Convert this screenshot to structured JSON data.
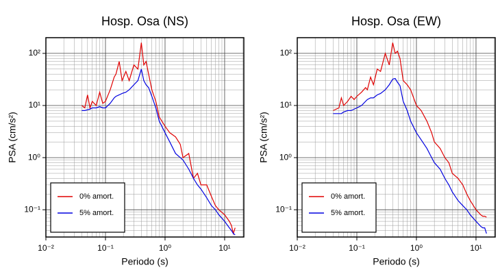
{
  "chart_data": [
    {
      "type": "line",
      "title": "Hosp. Osa (NS)",
      "x_label": "Periodo (s)",
      "y_label": "PSA (cm/s²)",
      "log_x": true,
      "log_y": true,
      "grid": true,
      "legend": "lower left",
      "xlim": [
        0.01,
        21
      ],
      "ylim": [
        0.03,
        200
      ],
      "xticks": [
        {
          "value": 0.01,
          "label": "10⁻²"
        },
        {
          "value": 0.1,
          "label": "10⁻¹"
        },
        {
          "value": 1,
          "label": "10⁰"
        },
        {
          "value": 10,
          "label": "10¹"
        }
      ],
      "yticks": [
        {
          "value": 0.1,
          "label": "10⁻¹"
        },
        {
          "value": 1,
          "label": "10⁰"
        },
        {
          "value": 10,
          "label": "10¹"
        },
        {
          "value": 100,
          "label": "10²"
        }
      ],
      "x": [
        0.04,
        0.045,
        0.05,
        0.055,
        0.06,
        0.07,
        0.08,
        0.09,
        0.1,
        0.12,
        0.14,
        0.15,
        0.17,
        0.19,
        0.22,
        0.25,
        0.3,
        0.35,
        0.4,
        0.44,
        0.48,
        0.53,
        0.6,
        0.7,
        0.8,
        1.0,
        1.2,
        1.5,
        1.8,
        2.0,
        2.5,
        3.0,
        3.5,
        4.0,
        5.0,
        6.0,
        7.0,
        8.0,
        10,
        12,
        13,
        14,
        15
      ],
      "series": [
        {
          "name": "0% amort.",
          "color": "#e00000",
          "values": [
            10,
            9,
            16,
            9,
            12,
            10,
            18,
            11,
            12,
            20,
            35,
            40,
            70,
            30,
            45,
            30,
            60,
            50,
            160,
            60,
            70,
            40,
            20,
            12,
            6,
            4,
            3,
            2.5,
            1.8,
            1,
            1.2,
            0.4,
            0.5,
            0.3,
            0.3,
            0.18,
            0.12,
            0.1,
            0.08,
            0.06,
            0.05,
            0.035,
            0.045
          ]
        },
        {
          "name": "5% amort.",
          "color": "#0000e0",
          "values": [
            8,
            8,
            8.3,
            8.5,
            9,
            9,
            9.5,
            9,
            9,
            11,
            14,
            15,
            16,
            17,
            18,
            20,
            25,
            30,
            50,
            30,
            25,
            22,
            15,
            9,
            5,
            3,
            2,
            1.2,
            1.0,
            0.9,
            0.6,
            0.4,
            0.3,
            0.25,
            0.17,
            0.12,
            0.1,
            0.08,
            0.06,
            0.045,
            0.04,
            0.035,
            0.033
          ]
        }
      ]
    },
    {
      "type": "line",
      "title": "Hosp. Osa (EW)",
      "x_label": "Periodo (s)",
      "y_label": "PSA (cm/s²)",
      "log_x": true,
      "log_y": true,
      "grid": true,
      "legend": "lower left",
      "xlim": [
        0.01,
        21
      ],
      "ylim": [
        0.03,
        200
      ],
      "xticks": [
        {
          "value": 0.01,
          "label": "10⁻²"
        },
        {
          "value": 0.1,
          "label": "10⁻¹"
        },
        {
          "value": 1,
          "label": "10⁰"
        },
        {
          "value": 10,
          "label": "10¹"
        }
      ],
      "yticks": [
        {
          "value": 0.1,
          "label": "10⁻¹"
        },
        {
          "value": 1,
          "label": "10⁰"
        },
        {
          "value": 10,
          "label": "10¹"
        },
        {
          "value": 100,
          "label": "10²"
        }
      ],
      "x": [
        0.04,
        0.045,
        0.05,
        0.055,
        0.06,
        0.07,
        0.08,
        0.09,
        0.1,
        0.12,
        0.14,
        0.15,
        0.17,
        0.19,
        0.22,
        0.25,
        0.3,
        0.35,
        0.4,
        0.44,
        0.48,
        0.53,
        0.6,
        0.7,
        0.8,
        1.0,
        1.2,
        1.5,
        1.8,
        2.0,
        2.5,
        3.0,
        3.5,
        4.0,
        5.0,
        6.0,
        7.0,
        8.0,
        10,
        12,
        13,
        14,
        15
      ],
      "series": [
        {
          "name": "0% amort.",
          "color": "#e00000",
          "values": [
            8,
            8.5,
            9,
            14,
            10,
            12,
            15,
            13,
            15,
            18,
            22,
            20,
            35,
            25,
            50,
            45,
            100,
            60,
            160,
            100,
            110,
            80,
            30,
            25,
            20,
            10,
            8,
            5,
            3,
            2,
            1.5,
            1,
            0.8,
            0.5,
            0.4,
            0.3,
            0.2,
            0.15,
            0.1,
            0.08,
            0.075,
            0.075,
            0.072
          ]
        },
        {
          "name": "5% amort.",
          "color": "#0000e0",
          "values": [
            7,
            7,
            7,
            7,
            7.5,
            8,
            8,
            8.5,
            9,
            10,
            12,
            13,
            14,
            14,
            16,
            17,
            20,
            25,
            32,
            33,
            28,
            24,
            12,
            8,
            5,
            3,
            2.2,
            1.5,
            1.0,
            0.8,
            0.6,
            0.4,
            0.3,
            0.22,
            0.15,
            0.12,
            0.1,
            0.08,
            0.06,
            0.048,
            0.045,
            0.045,
            0.035
          ]
        }
      ]
    }
  ]
}
